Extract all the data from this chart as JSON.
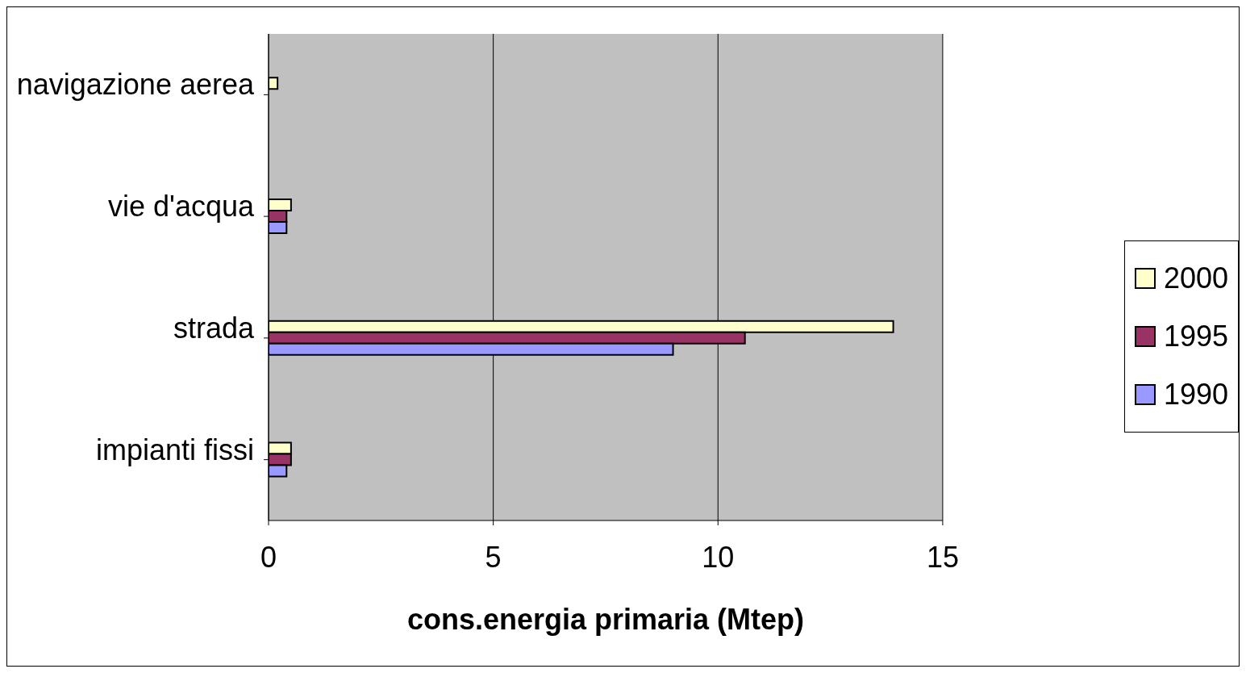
{
  "chart_data": {
    "type": "bar",
    "orientation": "horizontal",
    "xlabel": "cons.energia primaria (Mtep)",
    "categories": [
      "navigazione aerea",
      "vie d'acqua",
      "strada",
      "impianti fissi"
    ],
    "series": [
      {
        "name": "2000",
        "color": "#ffffcc",
        "values": [
          0.2,
          0.5,
          13.9,
          0.5
        ]
      },
      {
        "name": "1995",
        "color": "#993366",
        "values": [
          null,
          0.4,
          10.6,
          0.5
        ]
      },
      {
        "name": "1990",
        "color": "#9999ff",
        "values": [
          null,
          0.4,
          9.0,
          0.4
        ]
      }
    ],
    "xlim": [
      0,
      15
    ],
    "xticks": [
      0,
      5,
      10,
      15
    ],
    "grid": "x",
    "legend": "right"
  }
}
